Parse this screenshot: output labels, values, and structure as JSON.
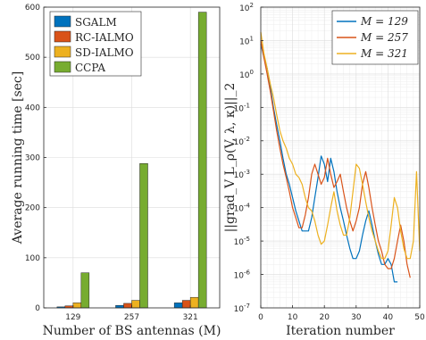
{
  "chart_data": [
    {
      "type": "bar",
      "xlabel": "Number of BS antennas (M)",
      "ylabel": "Average running time [sec]",
      "ylim": [
        0,
        600
      ],
      "yticks": [
        "0",
        "100",
        "200",
        "300",
        "400",
        "500",
        "600"
      ],
      "categories": [
        "129",
        "257",
        "321"
      ],
      "series": [
        {
          "name": "SGALM",
          "color": "#0072BD",
          "values": [
            2,
            5,
            10
          ]
        },
        {
          "name": "RC-IALMO",
          "color": "#D95319",
          "values": [
            4,
            9,
            15
          ]
        },
        {
          "name": "SD-IALMO",
          "color": "#EDB120",
          "values": [
            10,
            15,
            21
          ]
        },
        {
          "name": "CCPA",
          "color": "#77AC30",
          "values": [
            70,
            288,
            590
          ]
        }
      ],
      "grid": true,
      "legend": "top-left"
    },
    {
      "type": "line",
      "xlabel": "Iteration number",
      "ylabel": "||grad_V L_ρ(V, λ, κ)||_2",
      "yscale": "log",
      "xlim": [
        0,
        50
      ],
      "ylim_exp": [
        -7,
        2
      ],
      "xticks": [
        "0",
        "10",
        "20",
        "30",
        "40",
        "50"
      ],
      "yticks_exp": [
        "-7",
        "-6",
        "-5",
        "-4",
        "-3",
        "-2",
        "-1",
        "0",
        "1",
        "2"
      ],
      "ytick_base": "10",
      "grid": true,
      "legend": "top-right",
      "series": [
        {
          "name": "M = 129",
          "color": "#0072BD",
          "x": [
            0,
            1,
            2,
            3,
            4,
            5,
            6,
            7,
            8,
            9,
            10,
            11,
            12,
            13,
            14,
            15,
            16,
            17,
            18,
            19,
            20,
            21,
            22,
            23,
            24,
            25,
            26,
            27,
            28,
            29,
            30,
            31,
            32,
            33,
            34,
            35,
            36,
            37,
            38,
            39,
            40,
            41,
            42,
            43
          ],
          "y": [
            8,
            3,
            1.5,
            0.4,
            0.1,
            0.03,
            0.01,
            0.003,
            0.001,
            0.0005,
            0.0002,
            8e-05,
            4e-05,
            2e-05,
            2e-05,
            2e-05,
            5e-05,
            0.0002,
            0.0008,
            0.0035,
            0.002,
            0.0006,
            0.003,
            0.0012,
            0.0003,
            0.0001,
            4e-05,
            1.5e-05,
            6e-06,
            3e-06,
            3e-06,
            5e-06,
            1.5e-05,
            4e-05,
            8e-05,
            3e-05,
            1e-05,
            4e-06,
            2e-06,
            2e-06,
            3e-06,
            2e-06,
            6e-07,
            6e-07
          ]
        },
        {
          "name": "M = 257",
          "color": "#D95319",
          "x": [
            0,
            1,
            2,
            3,
            4,
            5,
            6,
            7,
            8,
            9,
            10,
            11,
            12,
            13,
            14,
            15,
            16,
            17,
            18,
            19,
            20,
            21,
            22,
            23,
            24,
            25,
            26,
            27,
            28,
            29,
            30,
            31,
            32,
            33,
            34,
            35,
            36,
            37,
            38,
            39,
            40,
            41,
            42,
            43,
            44,
            45,
            46,
            47
          ],
          "y": [
            10,
            3,
            1,
            0.3,
            0.08,
            0.02,
            0.006,
            0.002,
            0.0008,
            0.0003,
            0.0001,
            5e-05,
            2.5e-05,
            2.5e-05,
            6e-05,
            0.0002,
            0.001,
            0.002,
            0.001,
            0.0005,
            0.0008,
            0.003,
            0.001,
            0.0004,
            0.0006,
            0.001,
            0.0003,
            0.0001,
            4e-05,
            2e-05,
            4e-05,
            0.0001,
            0.0005,
            0.0012,
            0.0004,
            0.0001,
            3e-05,
            1e-05,
            5e-06,
            2e-06,
            1.5e-06,
            1.5e-06,
            3e-06,
            1e-05,
            3e-05,
            1e-05,
            2e-06,
            8e-07
          ]
        },
        {
          "name": "M = 321",
          "color": "#EDB120",
          "x": [
            0,
            1,
            2,
            3,
            4,
            5,
            6,
            7,
            8,
            9,
            10,
            11,
            12,
            13,
            14,
            15,
            16,
            17,
            18,
            19,
            20,
            21,
            22,
            23,
            24,
            25,
            26,
            27,
            28,
            29,
            30,
            31,
            32,
            33,
            34,
            35,
            36,
            37,
            38,
            39,
            40,
            41,
            42,
            43,
            44,
            45,
            46,
            47,
            48,
            49,
            50
          ],
          "y": [
            18,
            4,
            1.5,
            0.5,
            0.2,
            0.06,
            0.02,
            0.01,
            0.006,
            0.003,
            0.002,
            0.001,
            0.0008,
            0.0005,
            0.0002,
            0.0001,
            8e-05,
            4e-05,
            1.5e-05,
            8e-06,
            1e-05,
            3e-05,
            0.0001,
            0.0003,
            8e-05,
            3e-05,
            1.5e-05,
            1.5e-05,
            5e-05,
            0.0003,
            0.002,
            0.0015,
            0.0005,
            0.00015,
            5e-05,
            2e-05,
            1e-05,
            5e-06,
            3e-06,
            3e-06,
            5e-06,
            3e-05,
            0.0002,
            0.0001,
            2e-05,
            6e-06,
            3e-06,
            3e-06,
            1e-05,
            0.0012,
            5e-06
          ]
        }
      ]
    }
  ]
}
